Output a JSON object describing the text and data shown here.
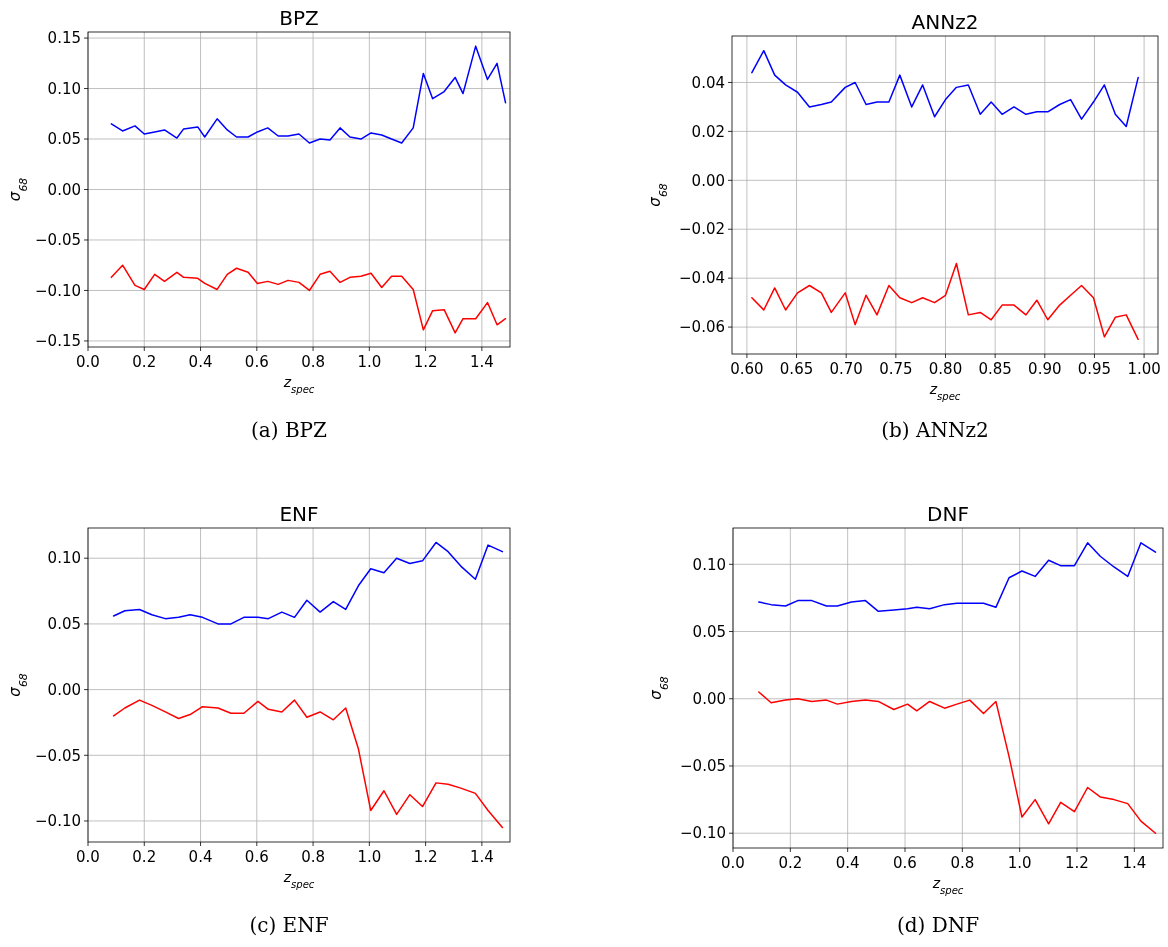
{
  "chart_data": [
    {
      "type": "line",
      "title": "BPZ",
      "xlabel": "z$_{spec}$",
      "ylabel": "σ$_{68}$",
      "annotations": [
        "(a) BPZ"
      ],
      "grid": true,
      "xlim": [
        0,
        1.5
      ],
      "ylim": [
        -0.156,
        0.156
      ],
      "xticks": [
        {
          "value": 0,
          "label": "0.0"
        },
        0.2,
        0.4,
        0.6,
        0.8,
        {
          "value": 1,
          "label": "1.0"
        },
        1.2,
        1.4
      ],
      "yticks": [
        {
          "value": -0.15,
          "label": "−0.15"
        },
        {
          "value": -0.1,
          "label": "−0.10"
        },
        {
          "value": -0.05,
          "label": "−0.05"
        },
        {
          "value": 0,
          "label": "0.00"
        },
        0.05,
        {
          "value": 0.1,
          "label": "0.10"
        },
        0.15
      ],
      "x": [
        0.083,
        0.123,
        0.167,
        0.2,
        0.237,
        0.272,
        0.316,
        0.34,
        0.39,
        0.415,
        0.459,
        0.495,
        0.528,
        0.569,
        0.602,
        0.639,
        0.676,
        0.711,
        0.75,
        0.787,
        0.825,
        0.86,
        0.896,
        0.931,
        0.97,
        1.006,
        1.044,
        1.079,
        1.115,
        1.156,
        1.192,
        1.225,
        1.266,
        1.305,
        1.333,
        1.378,
        1.42,
        1.454,
        1.484
      ],
      "series": [
        {
          "color": "#0000ff",
          "values": [
            0.065,
            0.058,
            0.063,
            0.055,
            0.057,
            0.059,
            0.051,
            0.06,
            0.062,
            0.052,
            0.07,
            0.059,
            0.052,
            0.052,
            0.057,
            0.061,
            0.053,
            0.053,
            0.055,
            0.046,
            0.05,
            0.049,
            0.061,
            0.052,
            0.05,
            0.056,
            0.054,
            0.05,
            0.046,
            0.061,
            0.115,
            0.09,
            0.097,
            0.111,
            0.095,
            0.142,
            0.109,
            0.125,
            0.086
          ]
        },
        {
          "color": "#ff0000",
          "values": [
            -0.087,
            -0.075,
            -0.095,
            -0.099,
            -0.084,
            -0.091,
            -0.082,
            -0.087,
            -0.088,
            -0.093,
            -0.099,
            -0.084,
            -0.078,
            -0.082,
            -0.093,
            -0.091,
            -0.094,
            -0.09,
            -0.092,
            -0.1,
            -0.084,
            -0.081,
            -0.092,
            -0.087,
            -0.086,
            -0.083,
            -0.097,
            -0.086,
            -0.086,
            -0.099,
            -0.139,
            -0.12,
            -0.119,
            -0.142,
            -0.128,
            -0.128,
            -0.112,
            -0.134,
            -0.128
          ]
        }
      ]
    },
    {
      "type": "line",
      "title": "ANNz2",
      "xlabel": "z$_{spec}$",
      "ylabel": "σ$_{68}$",
      "annotations": [
        "(b) ANNz2"
      ],
      "grid": true,
      "xlim": [
        0.585,
        1.014
      ],
      "ylim": [
        -0.071,
        0.059
      ],
      "xticks": [
        {
          "value": 0.6,
          "label": "0.60"
        },
        0.65,
        {
          "value": 0.7,
          "label": "0.70"
        },
        0.75,
        {
          "value": 0.8,
          "label": "0.80"
        },
        0.85,
        {
          "value": 0.9,
          "label": "0.90"
        },
        0.95,
        {
          "value": 1,
          "label": "1.00"
        }
      ],
      "yticks": [
        {
          "value": -0.06,
          "label": "−0.06"
        },
        {
          "value": -0.04,
          "label": "−0.04"
        },
        {
          "value": -0.02,
          "label": "−0.02"
        },
        {
          "value": 0,
          "label": "0.00"
        },
        0.02,
        0.04
      ],
      "x": [
        0.605,
        0.617,
        0.628,
        0.639,
        0.651,
        0.663,
        0.675,
        0.685,
        0.699,
        0.709,
        0.72,
        0.731,
        0.743,
        0.754,
        0.766,
        0.777,
        0.789,
        0.8,
        0.811,
        0.823,
        0.835,
        0.846,
        0.857,
        0.869,
        0.881,
        0.892,
        0.903,
        0.915,
        0.926,
        0.937,
        0.949,
        0.96,
        0.971,
        0.982,
        0.994
      ],
      "series": [
        {
          "color": "#0000ff",
          "values": [
            0.044,
            0.053,
            0.043,
            0.039,
            0.036,
            0.03,
            0.031,
            0.032,
            0.038,
            0.04,
            0.031,
            0.032,
            0.032,
            0.043,
            0.03,
            0.039,
            0.026,
            0.033,
            0.038,
            0.039,
            0.027,
            0.032,
            0.027,
            0.03,
            0.027,
            0.028,
            0.028,
            0.031,
            0.033,
            0.025,
            0.032,
            0.039,
            0.027,
            0.022,
            0.042
          ]
        },
        {
          "color": "#ff0000",
          "values": [
            -0.048,
            -0.053,
            -0.044,
            -0.053,
            -0.046,
            -0.043,
            -0.046,
            -0.054,
            -0.046,
            -0.059,
            -0.047,
            -0.055,
            -0.043,
            -0.048,
            -0.05,
            -0.048,
            -0.05,
            -0.047,
            -0.034,
            -0.055,
            -0.054,
            -0.057,
            -0.051,
            -0.051,
            -0.055,
            -0.049,
            -0.057,
            -0.051,
            -0.047,
            -0.043,
            -0.048,
            -0.064,
            -0.056,
            -0.055,
            -0.065
          ]
        }
      ]
    },
    {
      "type": "line",
      "title": "ENF",
      "xlabel": "z$_{spec}$",
      "ylabel": "σ$_{68}$",
      "annotations": [
        "(c) ENF"
      ],
      "grid": true,
      "xlim": [
        0,
        1.5
      ],
      "ylim": [
        -0.116,
        0.123
      ],
      "xticks": [
        {
          "value": 0,
          "label": "0.0"
        },
        0.2,
        0.4,
        0.6,
        0.8,
        {
          "value": 1,
          "label": "1.0"
        },
        1.2,
        1.4
      ],
      "yticks": [
        {
          "value": -0.1,
          "label": "−0.10"
        },
        {
          "value": -0.05,
          "label": "−0.05"
        },
        {
          "value": 0,
          "label": "0.00"
        },
        0.05,
        {
          "value": 0.1,
          "label": "0.10"
        }
      ],
      "x": [
        0.091,
        0.131,
        0.183,
        0.227,
        0.275,
        0.322,
        0.363,
        0.407,
        0.462,
        0.508,
        0.554,
        0.604,
        0.641,
        0.689,
        0.734,
        0.778,
        0.825,
        0.872,
        0.916,
        0.961,
        1.005,
        1.052,
        1.097,
        1.144,
        1.189,
        1.237,
        1.28,
        1.325,
        1.377,
        1.422,
        1.473
      ],
      "series": [
        {
          "color": "#0000ff",
          "values": [
            0.056,
            0.06,
            0.061,
            0.057,
            0.054,
            0.055,
            0.057,
            0.055,
            0.05,
            0.05,
            0.055,
            0.055,
            0.054,
            0.059,
            0.055,
            0.068,
            0.059,
            0.067,
            0.061,
            0.079,
            0.092,
            0.089,
            0.1,
            0.096,
            0.098,
            0.112,
            0.105,
            0.094,
            0.084,
            0.11,
            0.105
          ]
        },
        {
          "color": "#ff0000",
          "values": [
            -0.02,
            -0.014,
            -0.008,
            -0.012,
            -0.017,
            -0.022,
            -0.019,
            -0.013,
            -0.014,
            -0.018,
            -0.018,
            -0.009,
            -0.015,
            -0.017,
            -0.008,
            -0.021,
            -0.017,
            -0.023,
            -0.014,
            -0.045,
            -0.092,
            -0.077,
            -0.095,
            -0.08,
            -0.089,
            -0.071,
            -0.072,
            -0.075,
            -0.079,
            -0.092,
            -0.105
          ]
        }
      ]
    },
    {
      "type": "line",
      "title": "DNF",
      "xlabel": "z$_{spec}$",
      "ylabel": "σ$_{68}$",
      "annotations": [
        "(d) DNF"
      ],
      "grid": true,
      "xlim": [
        0,
        1.5
      ],
      "ylim": [
        -0.111,
        0.127
      ],
      "xticks": [
        {
          "value": 0,
          "label": "0.0"
        },
        0.2,
        0.4,
        0.6,
        0.8,
        {
          "value": 1,
          "label": "1.0"
        },
        1.2,
        1.4
      ],
      "yticks": [
        {
          "value": -0.1,
          "label": "−0.10"
        },
        {
          "value": -0.05,
          "label": "−0.05"
        },
        {
          "value": 0,
          "label": "0.00"
        },
        0.05,
        {
          "value": 0.1,
          "label": "0.10"
        }
      ],
      "x": [
        0.09,
        0.133,
        0.183,
        0.226,
        0.275,
        0.326,
        0.364,
        0.413,
        0.462,
        0.507,
        0.561,
        0.609,
        0.641,
        0.686,
        0.738,
        0.781,
        0.826,
        0.874,
        0.917,
        0.963,
        1.008,
        1.054,
        1.101,
        1.143,
        1.191,
        1.237,
        1.281,
        1.329,
        1.377,
        1.423,
        1.474
      ],
      "series": [
        {
          "color": "#0000ff",
          "values": [
            0.072,
            0.07,
            0.069,
            0.073,
            0.073,
            0.069,
            0.069,
            0.072,
            0.073,
            0.065,
            0.066,
            0.067,
            0.068,
            0.067,
            0.07,
            0.071,
            0.071,
            0.071,
            0.068,
            0.09,
            0.095,
            0.091,
            0.103,
            0.099,
            0.099,
            0.116,
            0.106,
            0.098,
            0.091,
            0.116,
            0.109
          ]
        },
        {
          "color": "#ff0000",
          "values": [
            0.005,
            -0.003,
            -0.001,
            0,
            -0.002,
            -0.001,
            -0.004,
            -0.002,
            -0.001,
            -0.002,
            -0.008,
            -0.004,
            -0.009,
            -0.002,
            -0.007,
            -0.004,
            -0.001,
            -0.011,
            -0.002,
            -0.043,
            -0.088,
            -0.075,
            -0.093,
            -0.077,
            -0.084,
            -0.066,
            -0.073,
            -0.075,
            -0.078,
            -0.091,
            -0.1
          ]
        }
      ]
    }
  ]
}
